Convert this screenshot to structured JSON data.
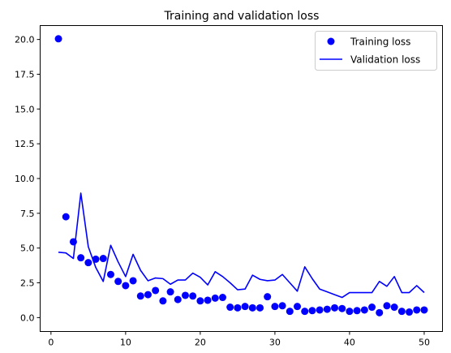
{
  "chart_data": {
    "type": "line",
    "title": "Training and validation loss",
    "xlabel": "",
    "ylabel": "",
    "xlim": [
      -1.45,
      52.45
    ],
    "ylim": [
      -1.0,
      21.0
    ],
    "xticks": [
      0,
      10,
      20,
      30,
      40,
      50
    ],
    "yticks": [
      0.0,
      2.5,
      5.0,
      7.5,
      10.0,
      12.5,
      15.0,
      17.5,
      20.0
    ],
    "ytick_labels": [
      "0.0",
      "2.5",
      "5.0",
      "7.5",
      "10.0",
      "12.5",
      "15.0",
      "17.5",
      "20.0"
    ],
    "grid": false,
    "legend": "top-right",
    "series": [
      {
        "name": "Training loss",
        "style": "dots",
        "color": "#0000ff",
        "x": [
          1,
          2,
          3,
          4,
          5,
          6,
          7,
          8,
          9,
          10,
          11,
          12,
          13,
          14,
          15,
          16,
          17,
          18,
          19,
          20,
          21,
          22,
          23,
          24,
          25,
          26,
          27,
          28,
          29,
          30,
          31,
          32,
          33,
          34,
          35,
          36,
          37,
          38,
          39,
          40,
          41,
          42,
          43,
          44,
          45,
          46,
          47,
          48,
          49,
          50
        ],
        "values": [
          20.05,
          7.25,
          5.45,
          4.3,
          3.95,
          4.2,
          4.25,
          3.1,
          2.6,
          2.3,
          2.65,
          1.55,
          1.65,
          1.95,
          1.2,
          1.85,
          1.3,
          1.6,
          1.55,
          1.2,
          1.25,
          1.4,
          1.45,
          0.75,
          0.7,
          0.8,
          0.7,
          0.7,
          1.5,
          0.8,
          0.85,
          0.45,
          0.8,
          0.45,
          0.5,
          0.55,
          0.6,
          0.7,
          0.65,
          0.45,
          0.5,
          0.55,
          0.75,
          0.35,
          0.85,
          0.75,
          0.45,
          0.4,
          0.55,
          0.55
        ]
      },
      {
        "name": "Validation loss",
        "style": "line",
        "color": "#0000ff",
        "x": [
          1,
          2,
          3,
          4,
          5,
          6,
          7,
          8,
          9,
          10,
          11,
          12,
          13,
          14,
          15,
          16,
          17,
          18,
          19,
          20,
          21,
          22,
          23,
          24,
          25,
          26,
          27,
          28,
          29,
          30,
          31,
          32,
          33,
          34,
          35,
          36,
          37,
          38,
          39,
          40,
          41,
          42,
          43,
          44,
          45,
          46,
          47,
          48,
          49,
          50
        ],
        "values": [
          4.7,
          4.65,
          4.25,
          8.95,
          5.1,
          3.6,
          2.6,
          5.2,
          4.0,
          2.95,
          4.55,
          3.4,
          2.65,
          2.85,
          2.8,
          2.4,
          2.7,
          2.7,
          3.2,
          2.9,
          2.35,
          3.3,
          2.95,
          2.5,
          2.0,
          2.05,
          3.05,
          2.75,
          2.65,
          2.7,
          3.1,
          2.5,
          1.9,
          3.65,
          2.8,
          2.05,
          1.85,
          1.65,
          1.45,
          1.8,
          1.8,
          1.8,
          1.8,
          2.6,
          2.25,
          2.95,
          1.8,
          1.8,
          2.3,
          1.8
        ]
      }
    ]
  }
}
